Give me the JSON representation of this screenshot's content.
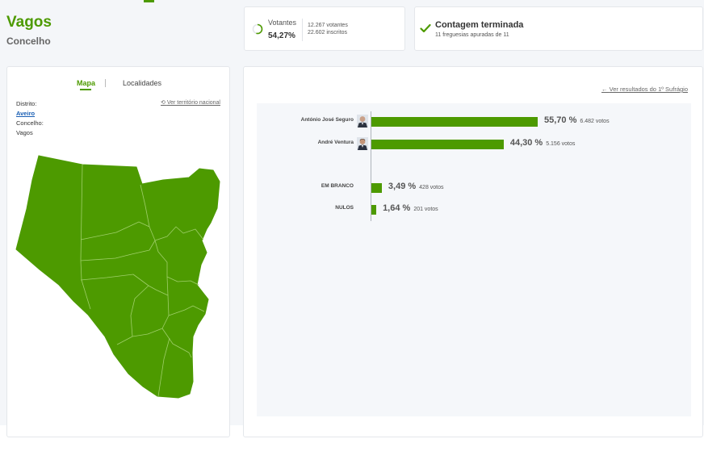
{
  "header": {
    "title": "Vagos",
    "subtitle": "Concelho"
  },
  "votantes": {
    "label": "Votantes",
    "percent": "54,27%",
    "turnout_fraction": 0.5427,
    "votantes_line": "12.267 votantes",
    "inscritos_line": "22.602 inscritos"
  },
  "contagem": {
    "title": "Contagem terminada",
    "subtitle": "11 freguesias apuradas de 11"
  },
  "map_panel": {
    "tab_mapa": "Mapa",
    "tab_localidades": "Localidades",
    "distrito_label": "Distrito:",
    "distrito_value": "Aveiro",
    "concelho_label": "Concelho:",
    "concelho_value": "Vagos",
    "ver_territorio": "Ver território nacional",
    "map_color": "#4d9a00"
  },
  "results_panel": {
    "ver_resultados": "Ver resultados do 1º Sufrágio",
    "rows": [
      {
        "label": "António José Seguro",
        "percent_text": "55,70 %",
        "votes_text": "6.482 votos",
        "percent": 55.7,
        "has_avatar": true
      },
      {
        "label": "André Ventura",
        "percent_text": "44,30 %",
        "votes_text": "5.156 votos",
        "percent": 44.3,
        "has_avatar": true
      },
      {
        "label": "EM BRANCO",
        "percent_text": "3,49 %",
        "votes_text": "428 votos",
        "percent": 3.49,
        "has_avatar": false
      },
      {
        "label": "NULOS",
        "percent_text": "1,64 %",
        "votes_text": "201 votos",
        "percent": 1.64,
        "has_avatar": false
      }
    ],
    "bar_color": "#4d9a00"
  }
}
